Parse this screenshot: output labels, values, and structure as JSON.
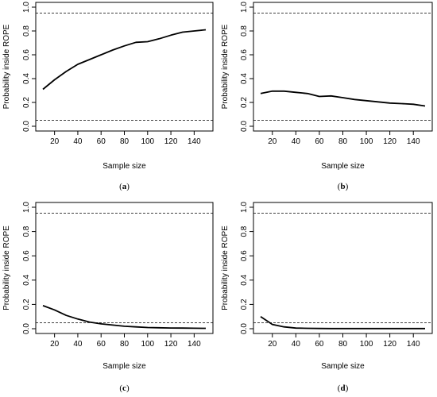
{
  "chart_data": [
    {
      "type": "line",
      "caption": "a",
      "xlabel": "Sample size",
      "ylabel": "Probability inside ROPE",
      "xlim": [
        10,
        150
      ],
      "ylim": [
        0,
        1
      ],
      "xticks": [
        20,
        40,
        60,
        80,
        100,
        120,
        140
      ],
      "yticks": [
        0.0,
        0.2,
        0.4,
        0.6,
        0.8,
        1.0
      ],
      "reference_lines": [
        0.05,
        0.95
      ],
      "series": [
        {
          "x": [
            10,
            20,
            30,
            40,
            50,
            60,
            70,
            80,
            90,
            100,
            110,
            120,
            130,
            140,
            150
          ],
          "values": [
            0.31,
            0.39,
            0.46,
            0.52,
            0.56,
            0.6,
            0.64,
            0.675,
            0.705,
            0.71,
            0.735,
            0.765,
            0.79,
            0.8,
            0.81
          ]
        }
      ]
    },
    {
      "type": "line",
      "caption": "b",
      "xlabel": "Sample size",
      "ylabel": "Probability inside ROPE",
      "xlim": [
        10,
        150
      ],
      "ylim": [
        0,
        1
      ],
      "xticks": [
        20,
        40,
        60,
        80,
        100,
        120,
        140
      ],
      "yticks": [
        0.0,
        0.2,
        0.4,
        0.6,
        0.8,
        1.0
      ],
      "reference_lines": [
        0.05,
        0.95
      ],
      "series": [
        {
          "x": [
            10,
            20,
            30,
            40,
            50,
            60,
            70,
            80,
            90,
            100,
            110,
            120,
            130,
            140,
            150
          ],
          "values": [
            0.275,
            0.295,
            0.295,
            0.285,
            0.275,
            0.25,
            0.255,
            0.24,
            0.225,
            0.215,
            0.205,
            0.195,
            0.19,
            0.185,
            0.17
          ]
        }
      ]
    },
    {
      "type": "line",
      "caption": "c",
      "xlabel": "Sample size",
      "ylabel": "Probability inside ROPE",
      "xlim": [
        10,
        150
      ],
      "ylim": [
        0,
        1
      ],
      "xticks": [
        20,
        40,
        60,
        80,
        100,
        120,
        140
      ],
      "yticks": [
        0.0,
        0.2,
        0.4,
        0.6,
        0.8,
        1.0
      ],
      "reference_lines": [
        0.05,
        0.95
      ],
      "series": [
        {
          "x": [
            10,
            20,
            30,
            40,
            50,
            60,
            70,
            80,
            90,
            100,
            110,
            120,
            130,
            140,
            150
          ],
          "values": [
            0.19,
            0.155,
            0.11,
            0.08,
            0.055,
            0.04,
            0.03,
            0.02,
            0.015,
            0.01,
            0.008,
            0.006,
            0.005,
            0.004,
            0.003
          ]
        }
      ]
    },
    {
      "type": "line",
      "caption": "d",
      "xlabel": "Sample size",
      "ylabel": "Probability inside ROPE",
      "xlim": [
        10,
        150
      ],
      "ylim": [
        0,
        1
      ],
      "xticks": [
        20,
        40,
        60,
        80,
        100,
        120,
        140
      ],
      "yticks": [
        0.0,
        0.2,
        0.4,
        0.6,
        0.8,
        1.0
      ],
      "reference_lines": [
        0.05,
        0.95
      ],
      "series": [
        {
          "x": [
            10,
            20,
            30,
            40,
            50,
            60,
            70,
            80,
            90,
            100,
            110,
            120,
            130,
            140,
            150
          ],
          "values": [
            0.1,
            0.035,
            0.015,
            0.005,
            0.003,
            0.002,
            0.001,
            0.001,
            0.001,
            0.001,
            0.001,
            0.001,
            0.001,
            0.001,
            0.001
          ]
        }
      ]
    }
  ]
}
